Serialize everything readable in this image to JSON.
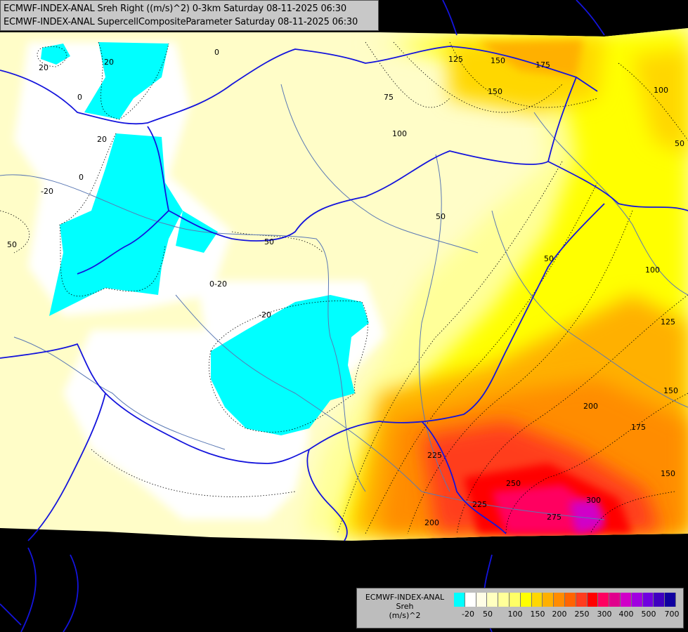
{
  "title": {
    "line1": "ECMWF-INDEX-ANAL Sreh Right ((m/s)^2) 0-3km Saturday 08-11-2025 06:30",
    "line2": "ECMWF-INDEX-ANAL SupercellCompositeParameter Saturday 08-11-2025 06:30"
  },
  "legend": {
    "title_line1": "ECMWF-INDEX-ANAL",
    "title_line2": "Sreh",
    "unit": "(m/s)^2",
    "colors": [
      "#00ffff",
      "#ffffff",
      "#fffde6",
      "#ffffc0",
      "#ffff99",
      "#ffff66",
      "#ffff00",
      "#ffd700",
      "#ffb000",
      "#ff8c00",
      "#ff6400",
      "#ff3c1e",
      "#ff0000",
      "#ff0060",
      "#e0008c",
      "#d000c8",
      "#a000e0",
      "#7000e0",
      "#4000c0",
      "#1000a0"
    ],
    "ticks": [
      "-20",
      "50",
      "100",
      "150",
      "200",
      "250",
      "300",
      "400",
      "500",
      "700"
    ]
  },
  "contour_labels": [
    "20",
    "20",
    "0",
    "20",
    "0",
    "-20",
    "-20",
    "50",
    "0",
    "-20",
    "50",
    "0",
    "75",
    "100",
    "125",
    "150",
    "175",
    "150",
    "100",
    "50",
    "50",
    "50",
    "100",
    "125",
    "150",
    "200",
    "175",
    "150",
    "225",
    "250",
    "225",
    "275",
    "300",
    "200"
  ],
  "colors": {
    "background": "#000000",
    "border": "#1414dc",
    "river": "#5a78b4"
  }
}
